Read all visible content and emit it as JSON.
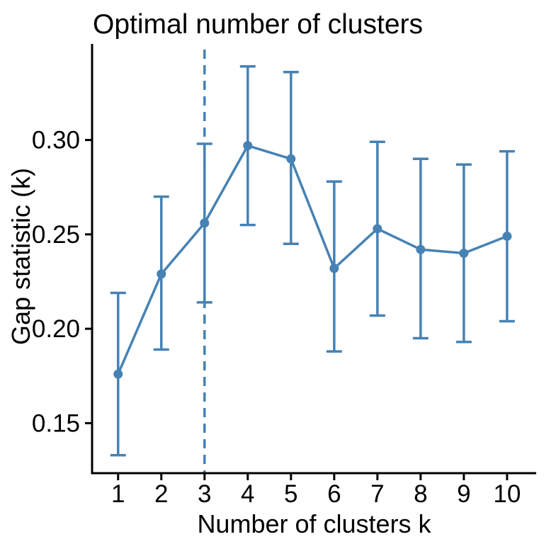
{
  "figure": {
    "title": "Optimal number of clusters",
    "xlabel": "Number of clusters k",
    "ylabel": "Gap statistic (k)"
  },
  "chart_data": {
    "type": "line",
    "title": "Optimal number of clusters",
    "xlabel": "Number of clusters k",
    "ylabel": "Gap statistic (k)",
    "x": [
      1,
      2,
      3,
      4,
      5,
      6,
      7,
      8,
      9,
      10
    ],
    "series": [
      {
        "name": "gap",
        "values": [
          0.176,
          0.229,
          0.256,
          0.297,
          0.29,
          0.232,
          0.253,
          0.242,
          0.24,
          0.249
        ],
        "ymin": [
          0.133,
          0.189,
          0.214,
          0.255,
          0.245,
          0.188,
          0.207,
          0.195,
          0.193,
          0.204
        ],
        "ymax": [
          0.219,
          0.27,
          0.298,
          0.339,
          0.336,
          0.278,
          0.299,
          0.29,
          0.287,
          0.294
        ]
      }
    ],
    "error_bars": true,
    "vline_x": 3,
    "vline_style": "dashed",
    "xticks": [
      1,
      2,
      3,
      4,
      5,
      6,
      7,
      8,
      9,
      10
    ],
    "yticks": [
      0.15,
      0.2,
      0.25,
      0.3
    ],
    "xlim": [
      0.398,
      10.674
    ],
    "ylim": [
      0.1235,
      0.3509
    ],
    "grid": false,
    "legend": "none",
    "accent_color": "#4682B4",
    "axis_color": "#000000",
    "background_color": "#ffffff"
  }
}
